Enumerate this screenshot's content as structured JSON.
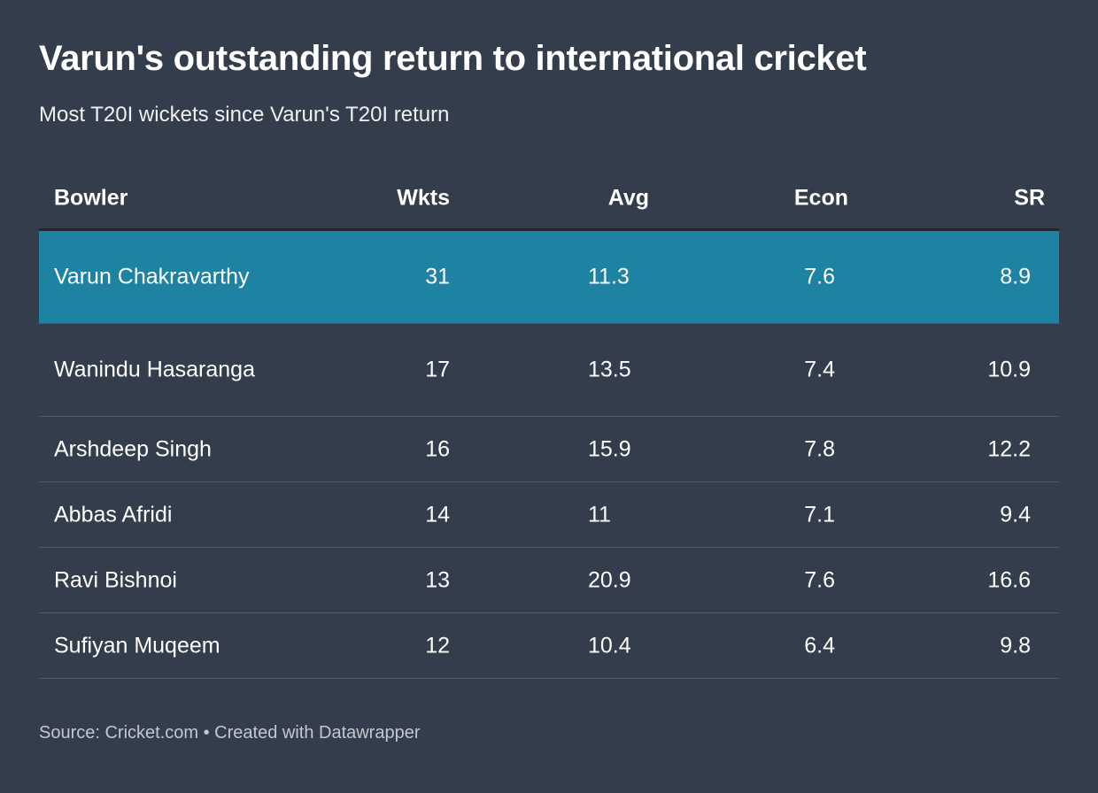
{
  "title": "Varun's outstanding return to international cricket",
  "subtitle": "Most T20I wickets since Varun's T20I return",
  "footer": "Source: Cricket.com • Created with Datawrapper",
  "colors": {
    "background": "#333d4b",
    "highlight": "#1e82a3"
  },
  "chart_data": {
    "type": "table",
    "columns": [
      "Bowler",
      "Wkts",
      "Avg",
      "Econ",
      "SR"
    ],
    "rows": [
      [
        "Varun Chakravarthy",
        "31",
        "11.3",
        "7.6",
        "8.9"
      ],
      [
        "Wanindu Hasaranga",
        "17",
        "13.5",
        "7.4",
        "10.9"
      ],
      [
        "Arshdeep Singh",
        "16",
        "15.9",
        "7.8",
        "12.2"
      ],
      [
        "Abbas Afridi",
        "14",
        "11",
        "7.1",
        "9.4"
      ],
      [
        "Ravi Bishnoi",
        "13",
        "20.9",
        "7.6",
        "16.6"
      ],
      [
        "Sufiyan Muqeem",
        "12",
        "10.4",
        "6.4",
        "9.8"
      ]
    ],
    "highlighted_row": 0
  }
}
